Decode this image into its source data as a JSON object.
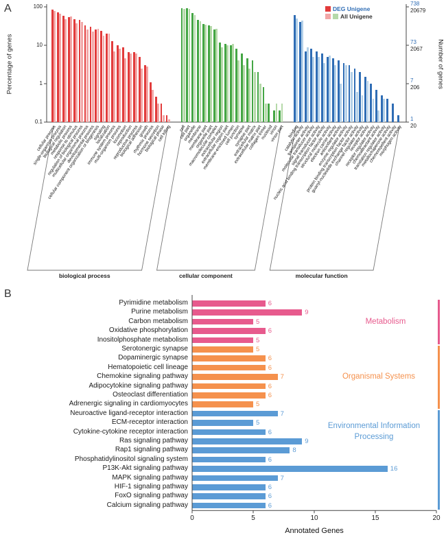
{
  "panels": {
    "a_label": "A",
    "b_label": "B"
  },
  "chart_data": [
    {
      "type": "bar",
      "panel": "A",
      "y_scale": "log",
      "ylim": [
        0.1,
        100
      ],
      "y_ticks": [
        100,
        10,
        1,
        0.1
      ],
      "ylabel_left": "Percentage of genes",
      "ylabel_right": "Number of genes",
      "right_axis": {
        "deg": [
          738,
          73,
          7,
          1
        ],
        "all": [
          20679,
          2067,
          206,
          20
        ]
      },
      "deg_number_color": "#2f6db5",
      "legend": [
        {
          "label": "DEG Unigene",
          "swatches": [
            "#e23b3b"
          ],
          "text_color": "#2f6db5"
        },
        {
          "label": "All Unigene",
          "swatches": [
            "#f2a6a6",
            "#b5d9a9"
          ],
          "text_color": "#333333"
        }
      ],
      "groups": [
        {
          "name": "biological process",
          "deg_color": "#e23b3b",
          "all_color": "#f2a6a6",
          "categories": [
            "cellular process",
            "single-organism process",
            "biological regulation",
            "metabolic process",
            "response to stimulus",
            "regulation of biological process",
            "multicellular organismal process",
            "developmental process",
            "cellular component organization or biogenesis",
            "signaling",
            "localization",
            "immune system process",
            "multi-organism process",
            "locomotion",
            "reproduction",
            "reproductive process",
            "biological adhesion",
            "growth",
            "rhythmic process",
            "hormone secretion",
            "biological phase",
            "cell killing"
          ],
          "series": [
            {
              "name": "DEG Unigene",
              "values": [
                85,
                72,
                58,
                55,
                48,
                45,
                33,
                30,
                26,
                24,
                20,
                13,
                10,
                9,
                6.5,
                6.5,
                5,
                3,
                1.1,
                0.45,
                0.3,
                0.15
              ]
            },
            {
              "name": "All Unigene",
              "values": [
                78,
                66,
                48,
                56,
                38,
                40,
                26,
                23,
                27,
                18,
                20,
                7,
                8,
                4.5,
                6,
                6,
                2.5,
                2.8,
                0.7,
                0.3,
                0.15,
                0.12
              ]
            }
          ]
        },
        {
          "name": "cellular component",
          "deg_color": "#44a644",
          "all_color": "#b5d9a9",
          "categories": [
            "cell",
            "cell part",
            "organelle",
            "membrane",
            "membrane part",
            "organelle part",
            "macromolecular complex",
            "extracellular region",
            "extracellular region part",
            "membrane-enclosed lumen",
            "cell junction",
            "synapse",
            "synapse part",
            "extracellular matrix",
            "extracellular matrix part",
            "collagen trimer",
            "nucleoid",
            "virion",
            "virion part"
          ],
          "series": [
            {
              "name": "DEG Unigene",
              "values": [
                92,
                92,
                68,
                45,
                36,
                33,
                26,
                12,
                11,
                10,
                8,
                6,
                4.5,
                4,
                2,
                0.8,
                0.3,
                0.2,
                0.2
              ]
            },
            {
              "name": "All Unigene",
              "values": [
                88,
                88,
                60,
                42,
                35,
                32,
                27,
                9,
                10,
                11,
                4,
                3,
                2.5,
                2,
                1,
                0.3,
                0.1,
                0.3,
                0.3
              ]
            }
          ]
        },
        {
          "name": "molecular function",
          "deg_color": "#2f6db5",
          "all_color": "#b3d0e8",
          "categories": [
            "binding",
            "catalytic activity",
            "transporter activity",
            "molecular transducer activity",
            "signal transducer activity",
            "nucleic acid binding transcription factor activity",
            "structural molecule activity",
            "electron carrier activity",
            "antioxidant activity",
            "enzyme regulator activity",
            "protein binding transcription factor activity",
            "guanyl-nucleotide exchange factor activity",
            "channel regulator activity",
            "receptor activity",
            "receptor regulator activity",
            "chemoattractant activity",
            "translation regulator activity",
            "metallochaperone activity",
            "chemorepellent activity",
            "morphogen activity"
          ],
          "series": [
            {
              "name": "DEG Unigene",
              "values": [
                62,
                40,
                7,
                8,
                7,
                6,
                5,
                4.5,
                4,
                3.5,
                3,
                2.5,
                2,
                1.5,
                1,
                0.7,
                0.5,
                0.4,
                0.3,
                0.15
              ]
            },
            {
              "name": "All Unigene",
              "values": [
                50,
                44,
                9,
                5,
                5,
                3.5,
                5.5,
                3,
                1,
                3,
                2,
                0.6,
                0.5,
                1.2,
                0.4,
                0.2,
                0.4,
                0.1,
                0.1,
                0.1
              ]
            }
          ]
        }
      ]
    },
    {
      "type": "bar",
      "panel": "B",
      "orientation": "horizontal",
      "xlabel": "Annotated Genes",
      "xlim": [
        0,
        20
      ],
      "x_ticks": [
        0,
        5,
        10,
        15,
        20
      ],
      "groups": [
        {
          "name": "Metabolism",
          "color": "#e75a8d",
          "categories": [
            "Pyrimidine metabolism",
            "Purine metabolism",
            "Carbon metabolism",
            "Oxidative phosphorylation",
            "Inositolphosphate metabolism"
          ],
          "values": [
            6,
            9,
            5,
            6,
            5
          ]
        },
        {
          "name": "Organismal Systems",
          "color": "#f5914d",
          "categories": [
            "Serotonergic synapse",
            "Dopaminergic synapse",
            "Hematopoietic cell lineage",
            "Chemokine signaling pathway",
            "Adipocytokine signaling pathway",
            "Osteoclast differentiation",
            "Adrenergic signaling in cardiomyocytes"
          ],
          "values": [
            5,
            6,
            6,
            7,
            6,
            6,
            5
          ]
        },
        {
          "name": "Environmental Information Processing",
          "color": "#5b9bd5",
          "categories": [
            "Neuroactive ligand-receptor interaction",
            "ECM-receptor interaction",
            "Cytokine-cytokine receptor interaction",
            "Ras signaling pathway",
            "Rap1 signaling pathway",
            "Phosphatidylinositol signaling system",
            "P13K-Akt signaling pathway",
            "MAPK signaling pathway",
            "HIF-1 signaling pathway",
            "FoxO signaling pathway",
            "Calcium signaling pathway"
          ],
          "values": [
            7,
            5,
            6,
            9,
            8,
            6,
            16,
            7,
            6,
            6,
            6
          ]
        }
      ]
    }
  ]
}
